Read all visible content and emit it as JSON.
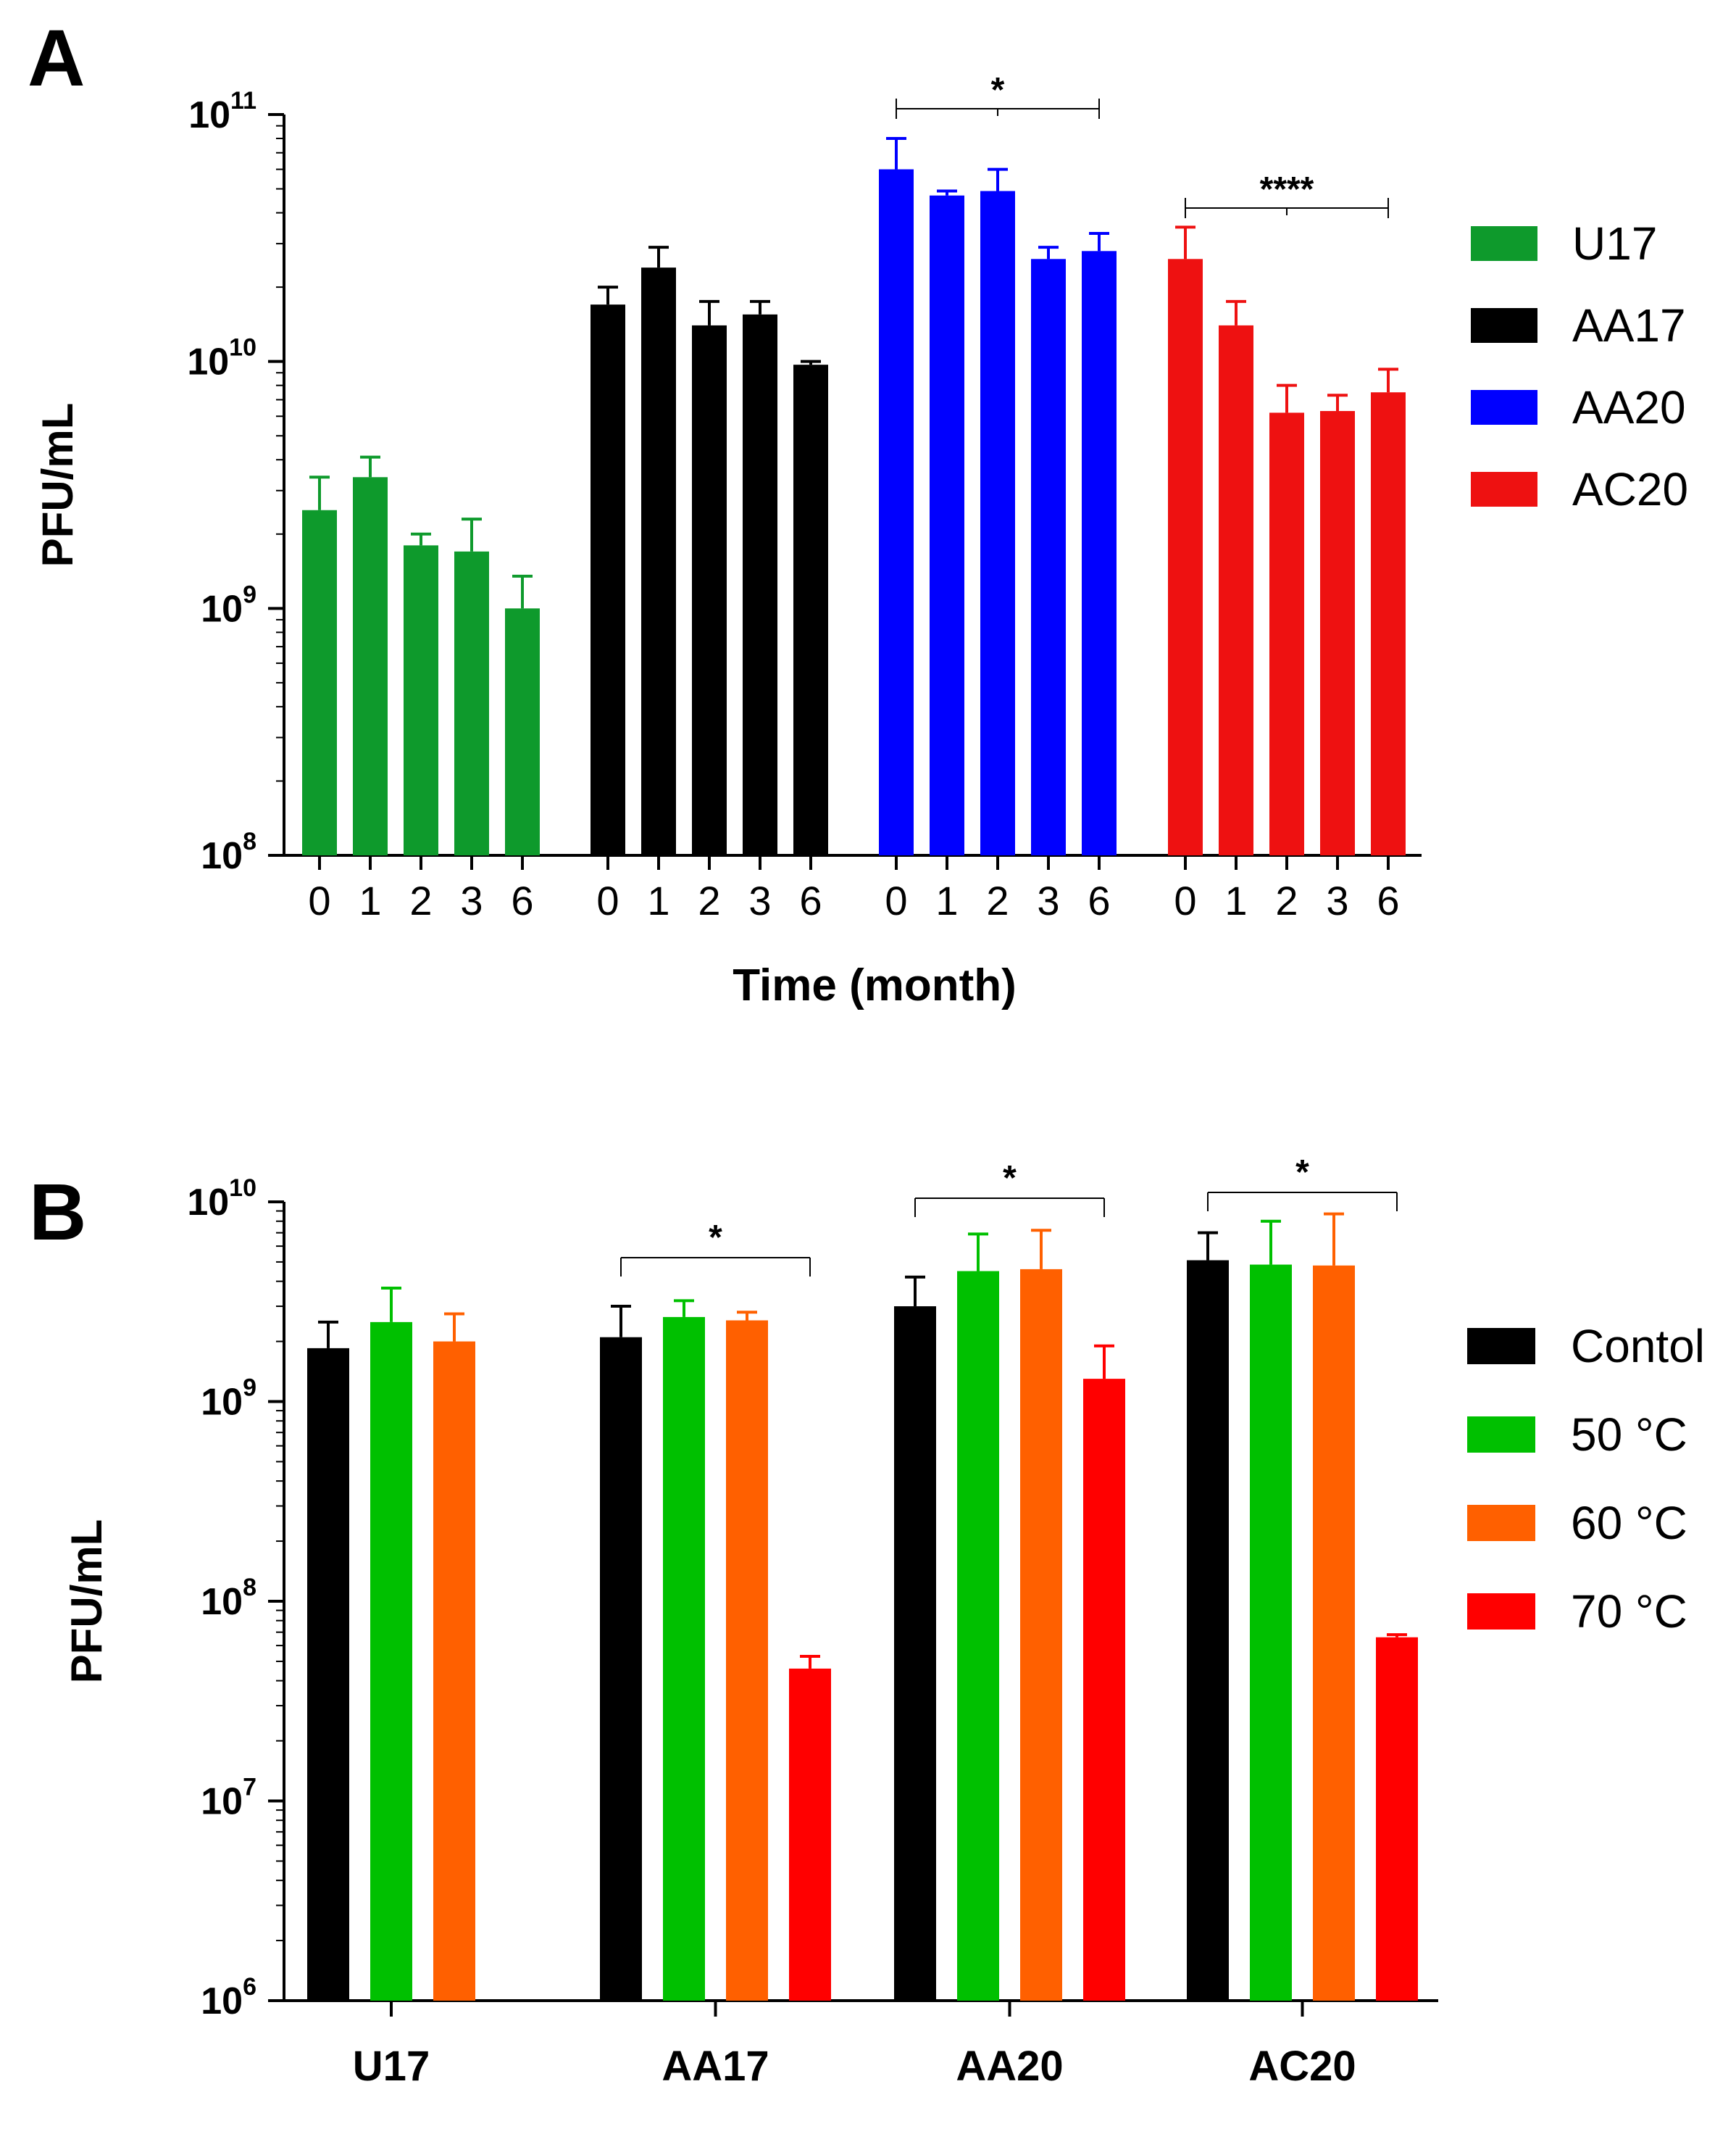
{
  "chart_data": [
    {
      "type": "bar",
      "panel_label": "A",
      "ylabel": "PFU/mL",
      "xlabel": "Time (month)",
      "yscale": "log",
      "ylim": [
        100000000,
        100000000000
      ],
      "yticks": [
        {
          "base": "10",
          "exp": "8"
        },
        {
          "base": "10",
          "exp": "9"
        },
        {
          "base": "10",
          "exp": "10"
        },
        {
          "base": "10",
          "exp": "11"
        }
      ],
      "categories": [
        "0",
        "1",
        "2",
        "3",
        "6"
      ],
      "series": [
        {
          "name": "U17",
          "color": "#0e9a2c",
          "values": [
            2500000000.0,
            3400000000.0,
            1800000000.0,
            1700000000.0,
            1000000000.0
          ],
          "errors": [
            3400000000.0,
            4100000000.0,
            2000000000.0,
            2300000000.0,
            1350000000.0
          ]
        },
        {
          "name": "AA17",
          "color": "#000000",
          "values": [
            17000000000.0,
            24000000000.0,
            14000000000.0,
            15500000000.0,
            9700000000.0
          ],
          "errors": [
            20000000000.0,
            29000000000.0,
            17500000000.0,
            17500000000.0,
            10000000000.0
          ]
        },
        {
          "name": "AA20",
          "color": "#0000ff",
          "values": [
            60000000000.0,
            47000000000.0,
            49000000000.0,
            26000000000.0,
            28000000000.0
          ],
          "errors": [
            80000000000.0,
            49000000000.0,
            60000000000.0,
            29000000000.0,
            33000000000.0
          ]
        },
        {
          "name": "AC20",
          "color": "#ee1111",
          "values": [
            26000000000.0,
            14000000000.0,
            6200000000.0,
            6300000000.0,
            7500000000.0
          ],
          "errors": [
            35000000000.0,
            17500000000.0,
            8000000000.0,
            7300000000.0,
            9300000000.0
          ]
        }
      ],
      "significance": [
        {
          "series": "AA20",
          "from": "0",
          "to": "6",
          "label": "*"
        },
        {
          "series": "AC20",
          "from": "0",
          "to": "6",
          "label": "****"
        }
      ],
      "legend": [
        "U17",
        "AA17",
        "AA20",
        "AC20"
      ]
    },
    {
      "type": "bar",
      "panel_label": "B",
      "ylabel": "PFU/mL",
      "xlabel": "",
      "yscale": "log",
      "ylim": [
        1000000,
        10000000000
      ],
      "yticks": [
        {
          "base": "10",
          "exp": "6"
        },
        {
          "base": "10",
          "exp": "7"
        },
        {
          "base": "10",
          "exp": "8"
        },
        {
          "base": "10",
          "exp": "9"
        },
        {
          "base": "10",
          "exp": "10"
        }
      ],
      "categories": [
        "U17",
        "AA17",
        "AA20",
        "AC20"
      ],
      "series": [
        {
          "name": "Contol",
          "color": "#000000",
          "values": [
            1850000000.0,
            2100000000.0,
            3000000000.0,
            5100000000.0
          ],
          "errors": [
            2500000000.0,
            3000000000.0,
            4200000000.0,
            7000000000.0
          ]
        },
        {
          "name": "50 °C",
          "color": "#00c000",
          "values": [
            2500000000.0,
            2650000000.0,
            4500000000.0,
            4850000000.0
          ],
          "errors": [
            3700000000.0,
            3200000000.0,
            6900000000.0,
            8000000000.0
          ]
        },
        {
          "name": "60 °C",
          "color": "#ff6000",
          "values": [
            2000000000.0,
            2550000000.0,
            4600000000.0,
            4800000000.0
          ],
          "errors": [
            2750000000.0,
            2800000000.0,
            7200000000.0,
            8700000000.0
          ]
        },
        {
          "name": "70 °C",
          "color": "#ff0000",
          "values": [
            null,
            46000000.0,
            1300000000.0,
            66000000.0
          ],
          "errors": [
            null,
            53000000.0,
            1900000000.0,
            68000000.0
          ]
        }
      ],
      "significance": [
        {
          "category": "AA17",
          "label": "*"
        },
        {
          "category": "AA20",
          "label": "*"
        },
        {
          "category": "AC20",
          "label": "*"
        }
      ],
      "legend": [
        "Contol",
        "50 °C",
        "60 °C",
        "70 °C"
      ]
    }
  ]
}
